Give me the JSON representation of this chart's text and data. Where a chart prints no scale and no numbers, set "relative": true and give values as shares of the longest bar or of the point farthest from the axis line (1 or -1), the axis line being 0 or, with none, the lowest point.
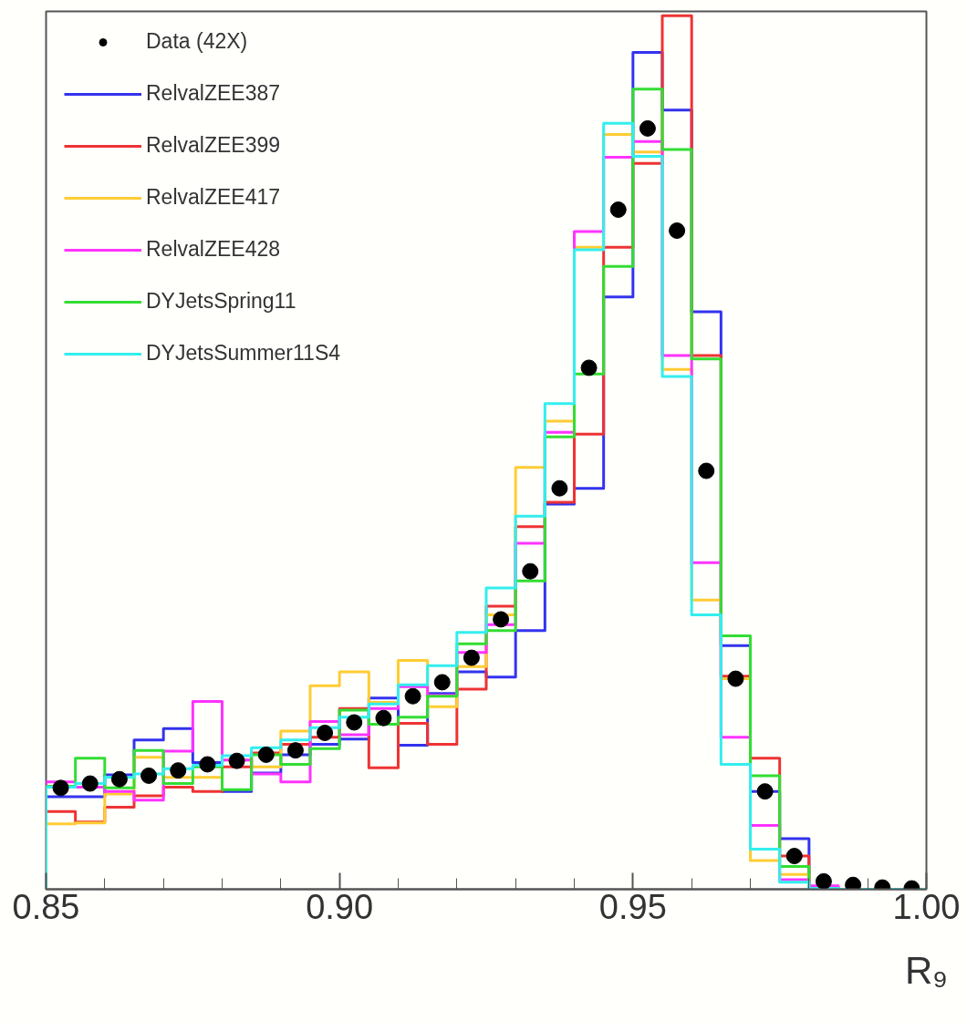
{
  "chart_data": {
    "type": "histogram",
    "relative": true,
    "xlabel": "R₉",
    "legend": "top left",
    "xlim": [
      0.85,
      1.0
    ],
    "xticks": [
      {
        "value": 0.85,
        "label": "0.85"
      },
      {
        "value": 0.9,
        "label": "0.90"
      },
      {
        "value": 0.95,
        "label": "0.95"
      },
      {
        "value": 1.0,
        "label": "1.00"
      }
    ],
    "bins": [
      0.85,
      0.855,
      0.86,
      0.865,
      0.87,
      0.875,
      0.88,
      0.885,
      0.89,
      0.895,
      0.9,
      0.905,
      0.91,
      0.915,
      0.92,
      0.925,
      0.93,
      0.935,
      0.94,
      0.945,
      0.95,
      0.955,
      0.96,
      0.965,
      0.97,
      0.975,
      0.98,
      0.985,
      0.99,
      0.995,
      1.0
    ],
    "series": [
      {
        "name": "Data (42X)",
        "type": "scatter",
        "marker": "circle",
        "color": "#000000",
        "x": [
          0.8525,
          0.8575,
          0.8625,
          0.8675,
          0.8725,
          0.8775,
          0.8825,
          0.8875,
          0.8925,
          0.8975,
          0.9025,
          0.9075,
          0.9125,
          0.9175,
          0.9225,
          0.9275,
          0.9325,
          0.9375,
          0.9425,
          0.9475,
          0.9525,
          0.9575,
          0.9625,
          0.9675,
          0.9725,
          0.9775,
          0.9825,
          0.9875,
          0.9925,
          0.9975
        ],
        "values": [
          0.116,
          0.121,
          0.126,
          0.13,
          0.136,
          0.143,
          0.147,
          0.154,
          0.159,
          0.179,
          0.191,
          0.196,
          0.221,
          0.237,
          0.265,
          0.309,
          0.364,
          0.459,
          0.597,
          0.778,
          0.871,
          0.754,
          0.479,
          0.241,
          0.112,
          0.038,
          0.009,
          0.005,
          0.002,
          0.001
        ]
      },
      {
        "name": "RelvalZEE387",
        "color": "#3333ee",
        "values": [
          0.106,
          0.106,
          0.131,
          0.171,
          0.184,
          0.145,
          0.112,
          0.133,
          0.154,
          0.166,
          0.172,
          0.219,
          0.165,
          0.224,
          0.249,
          0.243,
          0.296,
          0.441,
          0.459,
          0.678,
          0.958,
          0.892,
          0.661,
          0.279,
          0.112,
          0.058,
          0.001,
          0,
          0,
          0
        ]
      },
      {
        "name": "RelvalZEE399",
        "color": "#ee3333",
        "values": [
          0.089,
          0.077,
          0.094,
          0.107,
          0.117,
          0.112,
          0.14,
          0.156,
          0.166,
          0.174,
          0.207,
          0.139,
          0.19,
          0.166,
          0.229,
          0.324,
          0.415,
          0.443,
          0.521,
          0.735,
          0.831,
          1.0,
          0.611,
          0.244,
          0.15,
          0.038,
          0.001,
          0,
          0,
          0
        ]
      },
      {
        "name": "RelvalZEE417",
        "color": "#ffcc33",
        "values": [
          0.075,
          0.076,
          0.109,
          0.151,
          0.128,
          0.128,
          0.148,
          0.14,
          0.181,
          0.233,
          0.249,
          0.214,
          0.262,
          0.209,
          0.255,
          0.314,
          0.483,
          0.536,
          0.735,
          0.864,
          0.844,
          0.595,
          0.331,
          0.241,
          0.033,
          0.017,
          0.001,
          0,
          0,
          0
        ]
      },
      {
        "name": "RelvalZEE428",
        "color": "#ff33ff",
        "values": [
          0.123,
          0.117,
          0.112,
          0.102,
          0.158,
          0.215,
          0.148,
          0.132,
          0.123,
          0.192,
          0.177,
          0.207,
          0.232,
          0.222,
          0.271,
          0.303,
          0.396,
          0.523,
          0.753,
          0.838,
          0.856,
          0.611,
          0.374,
          0.174,
          0.073,
          0.011,
          0.004,
          0,
          0,
          0
        ]
      },
      {
        "name": "DYJetsSpring11",
        "color": "#33dd33",
        "values": [
          0.118,
          0.15,
          0.116,
          0.159,
          0.121,
          0.14,
          0.114,
          0.154,
          0.143,
          0.161,
          0.205,
          0.189,
          0.197,
          0.221,
          0.281,
          0.296,
          0.353,
          0.518,
          0.59,
          0.713,
          0.916,
          0.847,
          0.607,
          0.29,
          0.13,
          0.026,
          0.001,
          0,
          0,
          0
        ]
      },
      {
        "name": "DYJetsSummer11S4",
        "color": "#33eeee",
        "values": [
          0.117,
          0.121,
          0.128,
          0.132,
          0.138,
          0.142,
          0.153,
          0.162,
          0.171,
          0.185,
          0.197,
          0.212,
          0.234,
          0.256,
          0.294,
          0.345,
          0.427,
          0.556,
          0.732,
          0.877,
          0.839,
          0.587,
          0.314,
          0.143,
          0.046,
          0.008,
          0.001,
          0,
          0,
          0
        ]
      }
    ]
  }
}
